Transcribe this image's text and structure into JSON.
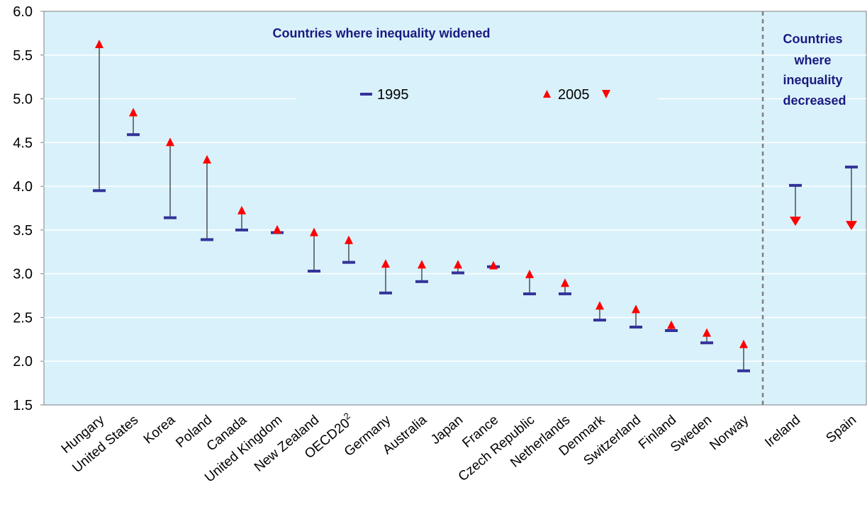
{
  "chart_data": {
    "type": "range_dot",
    "title": "",
    "xlabel": "",
    "ylabel": "",
    "ylim": [
      1.5,
      6.0
    ],
    "yticks": [
      "1.5",
      "2.0",
      "2.5",
      "3.0",
      "3.5",
      "4.0",
      "4.5",
      "5.0",
      "5.5",
      "6.0"
    ],
    "grid": true,
    "colors": {
      "plot_background": "#d9f1fb",
      "series_1995": "#333399",
      "series_2005": "#ff0000",
      "connector": "#000000",
      "divider": "#7f7f7f",
      "annotation": "#1a1a80"
    },
    "categories": [
      "Hungary",
      "United States",
      "Korea",
      "Poland",
      "Canada",
      "United Kingdom",
      "New Zealand",
      "OECD20",
      "Germany",
      "Australia",
      "Japan",
      "France",
      "Czech Republic",
      "Netherlands",
      "Denmark",
      "Switzerland",
      "Finland",
      "Sweden",
      "Norway",
      "Ireland",
      "Spain"
    ],
    "category_superscripts": {
      "OECD20": "2"
    },
    "series": [
      {
        "name": "1995",
        "marker": "dash",
        "values": [
          3.95,
          4.59,
          3.64,
          3.39,
          3.5,
          3.47,
          3.03,
          3.13,
          2.78,
          2.91,
          3.01,
          3.08,
          2.77,
          2.77,
          2.47,
          2.39,
          2.35,
          2.21,
          1.89,
          4.01,
          4.22
        ]
      },
      {
        "name": "2005",
        "marker": "triangle",
        "values": [
          5.62,
          4.84,
          4.5,
          4.3,
          3.72,
          3.5,
          3.47,
          3.38,
          3.11,
          3.1,
          3.1,
          3.09,
          2.99,
          2.89,
          2.63,
          2.59,
          2.41,
          2.32,
          2.19,
          3.58,
          3.53
        ]
      }
    ],
    "groups": [
      {
        "label": "Countries where inequality widened",
        "categories": [
          "Hungary",
          "United States",
          "Korea",
          "Poland",
          "Canada",
          "United Kingdom",
          "New Zealand",
          "OECD20",
          "Germany",
          "Australia",
          "Japan",
          "France",
          "Czech Republic",
          "Netherlands",
          "Denmark",
          "Switzerland",
          "Finland",
          "Sweden",
          "Norway"
        ]
      },
      {
        "label": "Countries where inequality decreased",
        "label_lines": [
          "Countries",
          "where",
          "inequality",
          "decreased"
        ],
        "categories": [
          "Ireland",
          "Spain"
        ]
      }
    ],
    "legend": {
      "placement": "top-center",
      "items": [
        "1995",
        "2005"
      ]
    }
  }
}
